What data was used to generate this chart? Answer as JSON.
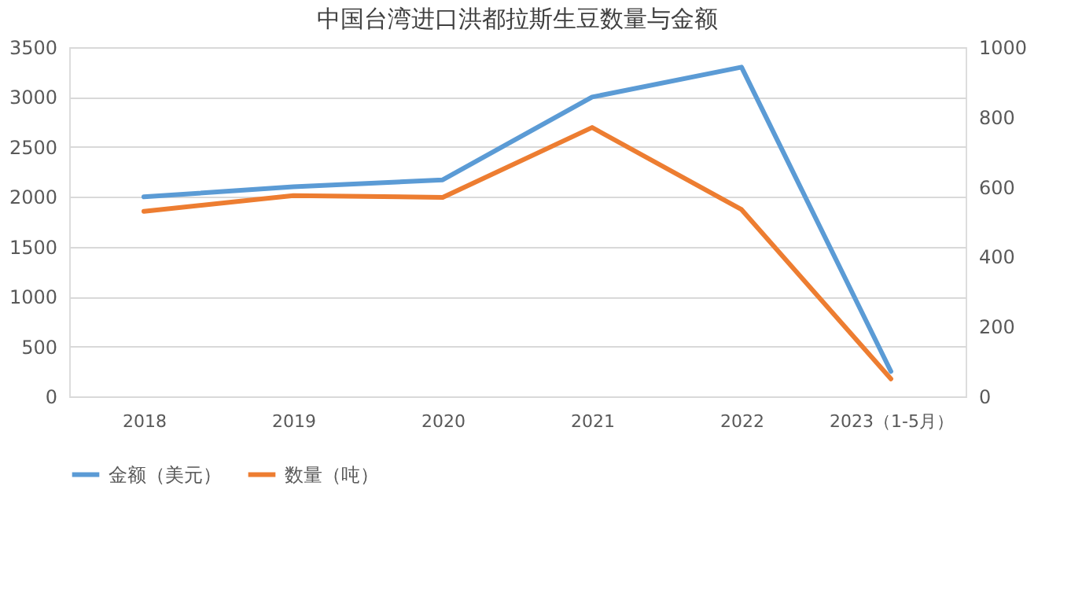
{
  "chart_data": {
    "type": "line",
    "title": "中国台湾进口洪都拉斯生豆数量与金额",
    "categories": [
      "2018",
      "2019",
      "2020",
      "2021",
      "2022",
      "2023（1-5月）"
    ],
    "series": [
      {
        "name": "金额（美元）",
        "color": "#5b9bd5",
        "values": [
          2000,
          2100,
          2170,
          3000,
          3300,
          250
        ]
      },
      {
        "name": "数量（吨）",
        "color": "#ed7d31",
        "axis": "y2",
        "values": [
          530,
          575,
          570,
          770,
          535,
          50
        ]
      }
    ],
    "ylim": [
      0,
      3500
    ],
    "yticks": [
      0,
      500,
      1000,
      1500,
      2000,
      2500,
      3000,
      3500
    ],
    "y2lim": [
      0,
      1000
    ],
    "y2ticks": [
      0,
      200,
      400,
      600,
      800,
      1000
    ],
    "grid": "y",
    "legend": "bottom",
    "marker": "none",
    "line_style": "solid"
  }
}
